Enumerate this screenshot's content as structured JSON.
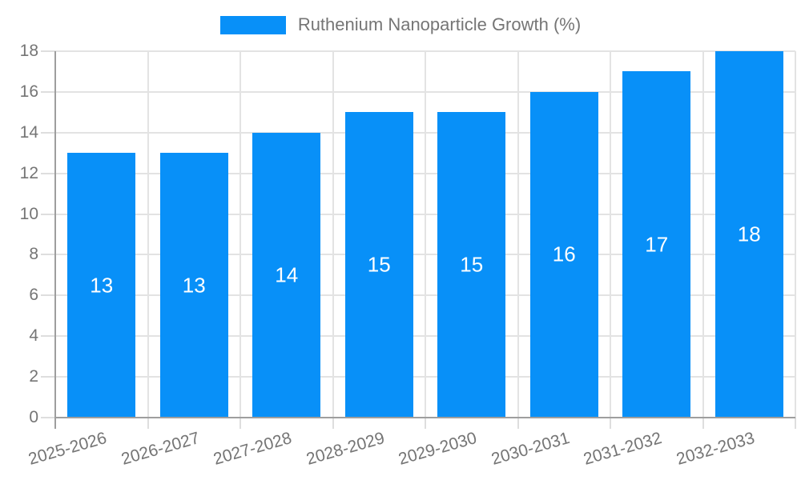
{
  "legend": {
    "label": "Ruthenium Nanoparticle Growth (%)"
  },
  "colors": {
    "bar": "#0890f8",
    "grid": "#e3e3e3",
    "axis": "#9e9e9e",
    "tick": "#dedede",
    "text": "#757575",
    "data_label": "#ffffff",
    "background": "#ffffff"
  },
  "chart_data": {
    "type": "bar",
    "title": "Ruthenium Nanoparticle Growth (%)",
    "categories": [
      "2025-2026",
      "2026-2027",
      "2027-2028",
      "2028-2029",
      "2029-2030",
      "2030-2031",
      "2031-2032",
      "2032-2033"
    ],
    "values": [
      13,
      13,
      14,
      15,
      15,
      16,
      17,
      18
    ],
    "data_labels": [
      13,
      13,
      14,
      15,
      15,
      16,
      17,
      18
    ],
    "xlabel": "",
    "ylabel": "",
    "ylim": [
      0,
      18
    ],
    "ytick_step": 2,
    "yticks": [
      0,
      2,
      4,
      6,
      8,
      10,
      12,
      14,
      16,
      18
    ],
    "grid": true,
    "legend_position": "top",
    "bar_color": "#0890f8",
    "label_rotation_deg": -16
  }
}
